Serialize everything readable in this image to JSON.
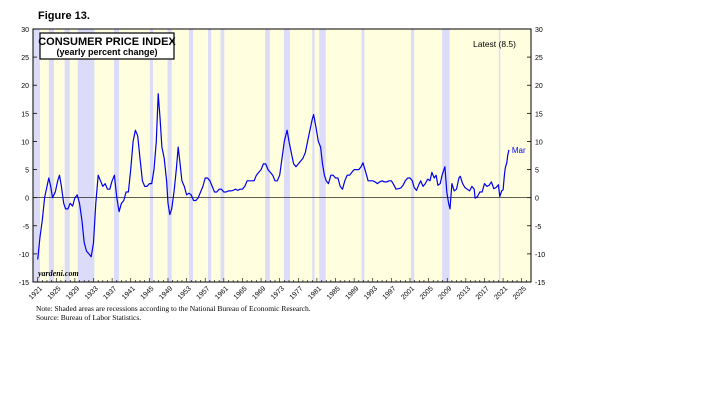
{
  "figure_label": "Figure 13.",
  "notes": {
    "shading": "Note: Shaded areas are recessions according to the National Bureau of Economic Research.",
    "source": "Source: Bureau of Labor Statistics."
  },
  "colors": {
    "plot_background": "#FFFFE0",
    "recession_band": "#DCDCF8",
    "series_line": "#0000EE",
    "zero_line": "#000000"
  },
  "chart_data": {
    "type": "line",
    "title": "CONSUMER PRICE INDEX",
    "subtitle": "(yearly percent change)",
    "annotation": "Latest (8.5)",
    "end_label": "Mar",
    "watermark": "yardeni.com",
    "xlim": [
      1920,
      2027
    ],
    "ylim": [
      -15,
      30
    ],
    "x_ticks": [
      1921,
      1925,
      1929,
      1933,
      1937,
      1941,
      1945,
      1949,
      1953,
      1957,
      1961,
      1965,
      1969,
      1973,
      1977,
      1981,
      1985,
      1989,
      1993,
      1997,
      2001,
      2005,
      2009,
      2013,
      2017,
      2021,
      2025
    ],
    "y_ticks": [
      -15,
      -10,
      -5,
      0,
      5,
      10,
      15,
      20,
      25,
      30
    ],
    "legend_position": "none",
    "grid": false,
    "recessions": [
      [
        1920.0,
        1921.5
      ],
      [
        1923.4,
        1924.5
      ],
      [
        1926.8,
        1927.9
      ],
      [
        1929.6,
        1933.2
      ],
      [
        1937.4,
        1938.5
      ],
      [
        1945.1,
        1945.8
      ],
      [
        1948.9,
        1949.8
      ],
      [
        1953.5,
        1954.4
      ],
      [
        1957.6,
        1958.3
      ],
      [
        1960.3,
        1961.1
      ],
      [
        1969.9,
        1970.9
      ],
      [
        1973.9,
        1975.2
      ],
      [
        1980.0,
        1980.5
      ],
      [
        1981.5,
        1982.9
      ],
      [
        1990.6,
        1991.2
      ],
      [
        2001.2,
        2001.9
      ],
      [
        2007.9,
        2009.5
      ],
      [
        2020.1,
        2020.4
      ]
    ],
    "series": [
      {
        "values": [
          [
            1921.0,
            -11
          ],
          [
            1921.5,
            -7
          ],
          [
            1922.0,
            -4
          ],
          [
            1922.5,
            0
          ],
          [
            1923.0,
            2
          ],
          [
            1923.4,
            3.5
          ],
          [
            1923.8,
            2
          ],
          [
            1924.2,
            0
          ],
          [
            1924.8,
            1
          ],
          [
            1925.3,
            3
          ],
          [
            1925.7,
            4
          ],
          [
            1926.1,
            2
          ],
          [
            1926.6,
            -1
          ],
          [
            1927.0,
            -2
          ],
          [
            1927.5,
            -2
          ],
          [
            1928.0,
            -1
          ],
          [
            1928.5,
            -1.5
          ],
          [
            1929.0,
            0
          ],
          [
            1929.5,
            0.5
          ],
          [
            1930.0,
            -1
          ],
          [
            1930.5,
            -4
          ],
          [
            1931.0,
            -8
          ],
          [
            1931.5,
            -9.5
          ],
          [
            1932.0,
            -10
          ],
          [
            1932.5,
            -10.5
          ],
          [
            1933.0,
            -8
          ],
          [
            1933.5,
            -1
          ],
          [
            1934.0,
            4
          ],
          [
            1934.5,
            3
          ],
          [
            1935.0,
            2
          ],
          [
            1935.5,
            2.5
          ],
          [
            1936.0,
            1.5
          ],
          [
            1936.5,
            1.5
          ],
          [
            1937.0,
            3
          ],
          [
            1937.5,
            4
          ],
          [
            1938.0,
            0
          ],
          [
            1938.5,
            -2.5
          ],
          [
            1939.0,
            -1
          ],
          [
            1939.5,
            -0.5
          ],
          [
            1940.0,
            1
          ],
          [
            1940.5,
            1
          ],
          [
            1941.0,
            5
          ],
          [
            1941.5,
            10
          ],
          [
            1942.0,
            12
          ],
          [
            1942.5,
            11
          ],
          [
            1943.0,
            7
          ],
          [
            1943.5,
            3
          ],
          [
            1944.0,
            2
          ],
          [
            1944.5,
            2
          ],
          [
            1945.0,
            2.5
          ],
          [
            1945.5,
            2.5
          ],
          [
            1946.0,
            5
          ],
          [
            1946.5,
            10
          ],
          [
            1946.9,
            18.5
          ],
          [
            1947.3,
            14
          ],
          [
            1947.7,
            9
          ],
          [
            1948.2,
            7
          ],
          [
            1948.7,
            3
          ],
          [
            1949.0,
            -1
          ],
          [
            1949.4,
            -3
          ],
          [
            1949.8,
            -2
          ],
          [
            1950.3,
            1
          ],
          [
            1950.8,
            5
          ],
          [
            1951.2,
            9
          ],
          [
            1951.6,
            6
          ],
          [
            1952.0,
            3
          ],
          [
            1952.5,
            2
          ],
          [
            1953.0,
            0.5
          ],
          [
            1953.5,
            0.8
          ],
          [
            1954.0,
            0.5
          ],
          [
            1954.5,
            -0.5
          ],
          [
            1955.0,
            -0.5
          ],
          [
            1955.5,
            0
          ],
          [
            1956.0,
            1
          ],
          [
            1956.5,
            2
          ],
          [
            1957.0,
            3.5
          ],
          [
            1957.5,
            3.5
          ],
          [
            1958.0,
            3
          ],
          [
            1958.5,
            2
          ],
          [
            1959.0,
            1
          ],
          [
            1959.5,
            1
          ],
          [
            1960.0,
            1.5
          ],
          [
            1960.5,
            1.5
          ],
          [
            1961.0,
            1
          ],
          [
            1961.5,
            1
          ],
          [
            1962.0,
            1.2
          ],
          [
            1962.5,
            1.2
          ],
          [
            1963.0,
            1.3
          ],
          [
            1963.5,
            1.5
          ],
          [
            1964.0,
            1.3
          ],
          [
            1964.5,
            1.5
          ],
          [
            1965.0,
            1.5
          ],
          [
            1965.5,
            2
          ],
          [
            1966.0,
            3
          ],
          [
            1966.5,
            3
          ],
          [
            1967.0,
            3
          ],
          [
            1967.5,
            3
          ],
          [
            1968.0,
            4
          ],
          [
            1968.5,
            4.5
          ],
          [
            1969.0,
            5
          ],
          [
            1969.5,
            6
          ],
          [
            1970.0,
            6
          ],
          [
            1970.5,
            5
          ],
          [
            1971.0,
            4.5
          ],
          [
            1971.5,
            4
          ],
          [
            1972.0,
            3
          ],
          [
            1972.5,
            3
          ],
          [
            1973.0,
            4
          ],
          [
            1973.5,
            7
          ],
          [
            1974.0,
            10
          ],
          [
            1974.6,
            12
          ],
          [
            1975.0,
            10
          ],
          [
            1975.5,
            8
          ],
          [
            1976.0,
            6
          ],
          [
            1976.5,
            5.5
          ],
          [
            1977.0,
            6
          ],
          [
            1977.5,
            6.5
          ],
          [
            1978.0,
            7
          ],
          [
            1978.5,
            8
          ],
          [
            1979.0,
            10
          ],
          [
            1979.5,
            12
          ],
          [
            1980.0,
            14
          ],
          [
            1980.3,
            14.8
          ],
          [
            1980.8,
            12.5
          ],
          [
            1981.3,
            10
          ],
          [
            1981.8,
            9
          ],
          [
            1982.2,
            6
          ],
          [
            1982.6,
            4
          ],
          [
            1983.0,
            3
          ],
          [
            1983.5,
            2.5
          ],
          [
            1984.0,
            4
          ],
          [
            1984.5,
            4
          ],
          [
            1985.0,
            3.5
          ],
          [
            1985.5,
            3.5
          ],
          [
            1986.0,
            2
          ],
          [
            1986.5,
            1.5
          ],
          [
            1987.0,
            3
          ],
          [
            1987.5,
            4
          ],
          [
            1988.0,
            4
          ],
          [
            1988.5,
            4.5
          ],
          [
            1989.0,
            5
          ],
          [
            1989.5,
            5
          ],
          [
            1990.0,
            5
          ],
          [
            1990.5,
            5.5
          ],
          [
            1990.9,
            6.2
          ],
          [
            1991.5,
            4.5
          ],
          [
            1992.0,
            3
          ],
          [
            1992.5,
            3
          ],
          [
            1993.0,
            3
          ],
          [
            1993.5,
            2.8
          ],
          [
            1994.0,
            2.5
          ],
          [
            1994.5,
            2.8
          ],
          [
            1995.0,
            3
          ],
          [
            1995.5,
            2.8
          ],
          [
            1996.0,
            2.8
          ],
          [
            1996.5,
            3
          ],
          [
            1997.0,
            3
          ],
          [
            1997.5,
            2.3
          ],
          [
            1998.0,
            1.5
          ],
          [
            1998.5,
            1.6
          ],
          [
            1999.0,
            1.7
          ],
          [
            1999.5,
            2.2
          ],
          [
            2000.0,
            3
          ],
          [
            2000.5,
            3.5
          ],
          [
            2001.0,
            3.5
          ],
          [
            2001.5,
            3
          ],
          [
            2001.9,
            1.8
          ],
          [
            2002.4,
            1.3
          ],
          [
            2002.9,
            2.3
          ],
          [
            2003.3,
            3
          ],
          [
            2003.8,
            2
          ],
          [
            2004.3,
            2.5
          ],
          [
            2004.8,
            3.3
          ],
          [
            2005.3,
            3
          ],
          [
            2005.7,
            4.5
          ],
          [
            2006.2,
            3.5
          ],
          [
            2006.6,
            4
          ],
          [
            2007.0,
            2.2
          ],
          [
            2007.5,
            2.5
          ],
          [
            2007.9,
            4
          ],
          [
            2008.5,
            5.5
          ],
          [
            2008.9,
            1
          ],
          [
            2009.3,
            -1
          ],
          [
            2009.6,
            -2
          ],
          [
            2010.0,
            2.5
          ],
          [
            2010.5,
            1.2
          ],
          [
            2011.0,
            1.5
          ],
          [
            2011.5,
            3.5
          ],
          [
            2011.8,
            3.8
          ],
          [
            2012.3,
            2.5
          ],
          [
            2012.8,
            1.8
          ],
          [
            2013.3,
            1.5
          ],
          [
            2013.8,
            1.2
          ],
          [
            2014.3,
            2
          ],
          [
            2014.8,
            1.5
          ],
          [
            2015.0,
            -0.1
          ],
          [
            2015.5,
            0.2
          ],
          [
            2016.0,
            1
          ],
          [
            2016.5,
            1
          ],
          [
            2017.0,
            2.5
          ],
          [
            2017.5,
            2
          ],
          [
            2018.0,
            2.2
          ],
          [
            2018.5,
            2.8
          ],
          [
            2019.0,
            1.6
          ],
          [
            2019.5,
            1.8
          ],
          [
            2020.0,
            2.3
          ],
          [
            2020.3,
            0.2
          ],
          [
            2020.7,
            1.2
          ],
          [
            2021.0,
            1.4
          ],
          [
            2021.3,
            4.2
          ],
          [
            2021.5,
            5.4
          ],
          [
            2021.8,
            6.2
          ],
          [
            2022.0,
            7.5
          ],
          [
            2022.25,
            8.5
          ]
        ]
      }
    ]
  }
}
